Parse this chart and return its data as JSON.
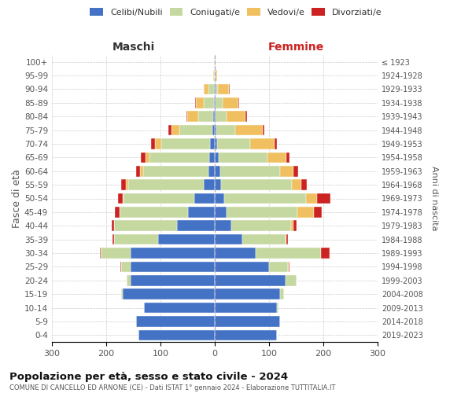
{
  "age_groups": [
    "0-4",
    "5-9",
    "10-14",
    "15-19",
    "20-24",
    "25-29",
    "30-34",
    "35-39",
    "40-44",
    "45-49",
    "50-54",
    "55-59",
    "60-64",
    "65-69",
    "70-74",
    "75-79",
    "80-84",
    "85-89",
    "90-94",
    "95-99",
    "100+"
  ],
  "birth_years": [
    "2019-2023",
    "2014-2018",
    "2009-2013",
    "2004-2008",
    "1999-2003",
    "1994-1998",
    "1989-1993",
    "1984-1988",
    "1979-1983",
    "1974-1978",
    "1969-1973",
    "1964-1968",
    "1959-1963",
    "1954-1958",
    "1949-1953",
    "1944-1948",
    "1939-1943",
    "1934-1938",
    "1929-1933",
    "1924-1928",
    "≤ 1923"
  ],
  "male_celibe": [
    140,
    145,
    130,
    170,
    155,
    155,
    155,
    105,
    70,
    50,
    38,
    20,
    12,
    10,
    8,
    5,
    3,
    2,
    2,
    0,
    0
  ],
  "male_coniugato": [
    0,
    0,
    1,
    3,
    8,
    18,
    55,
    80,
    115,
    125,
    130,
    140,
    120,
    110,
    90,
    60,
    28,
    18,
    10,
    2,
    1
  ],
  "male_vedovo": [
    0,
    0,
    0,
    0,
    0,
    0,
    0,
    0,
    0,
    1,
    2,
    4,
    5,
    8,
    12,
    15,
    20,
    15,
    8,
    1,
    0
  ],
  "male_divorziato": [
    0,
    0,
    0,
    0,
    0,
    1,
    2,
    3,
    5,
    8,
    8,
    8,
    8,
    8,
    8,
    5,
    1,
    1,
    0,
    0,
    0
  ],
  "female_celibe": [
    115,
    120,
    115,
    120,
    130,
    100,
    75,
    50,
    30,
    22,
    18,
    12,
    10,
    7,
    5,
    3,
    2,
    2,
    1,
    0,
    0
  ],
  "female_coniugato": [
    0,
    0,
    2,
    8,
    20,
    35,
    120,
    80,
    110,
    130,
    150,
    130,
    110,
    90,
    60,
    35,
    20,
    12,
    5,
    1,
    0
  ],
  "female_vedovo": [
    0,
    0,
    0,
    0,
    0,
    1,
    1,
    2,
    5,
    30,
    20,
    18,
    25,
    35,
    45,
    50,
    35,
    30,
    20,
    3,
    1
  ],
  "female_divorziato": [
    0,
    0,
    0,
    0,
    1,
    2,
    15,
    3,
    5,
    15,
    25,
    10,
    8,
    5,
    5,
    3,
    2,
    1,
    1,
    0,
    0
  ],
  "colors": {
    "celibe": "#4472C4",
    "coniugato": "#c5d8a0",
    "vedovo": "#f0c060",
    "divorziato": "#cc2222"
  },
  "title": "Popolazione per età, sesso e stato civile - 2024",
  "subtitle": "COMUNE DI CANCELLO ED ARNONE (CE) - Dati ISTAT 1° gennaio 2024 - Elaborazione TUTTITALIA.IT",
  "ylabel_left": "Fasce di età",
  "ylabel_right": "Anni di nascita",
  "xlabel_left": "Maschi",
  "xlabel_right": "Femmine",
  "xlim": 300,
  "background_color": "#ffffff",
  "grid_color": "#cccccc"
}
